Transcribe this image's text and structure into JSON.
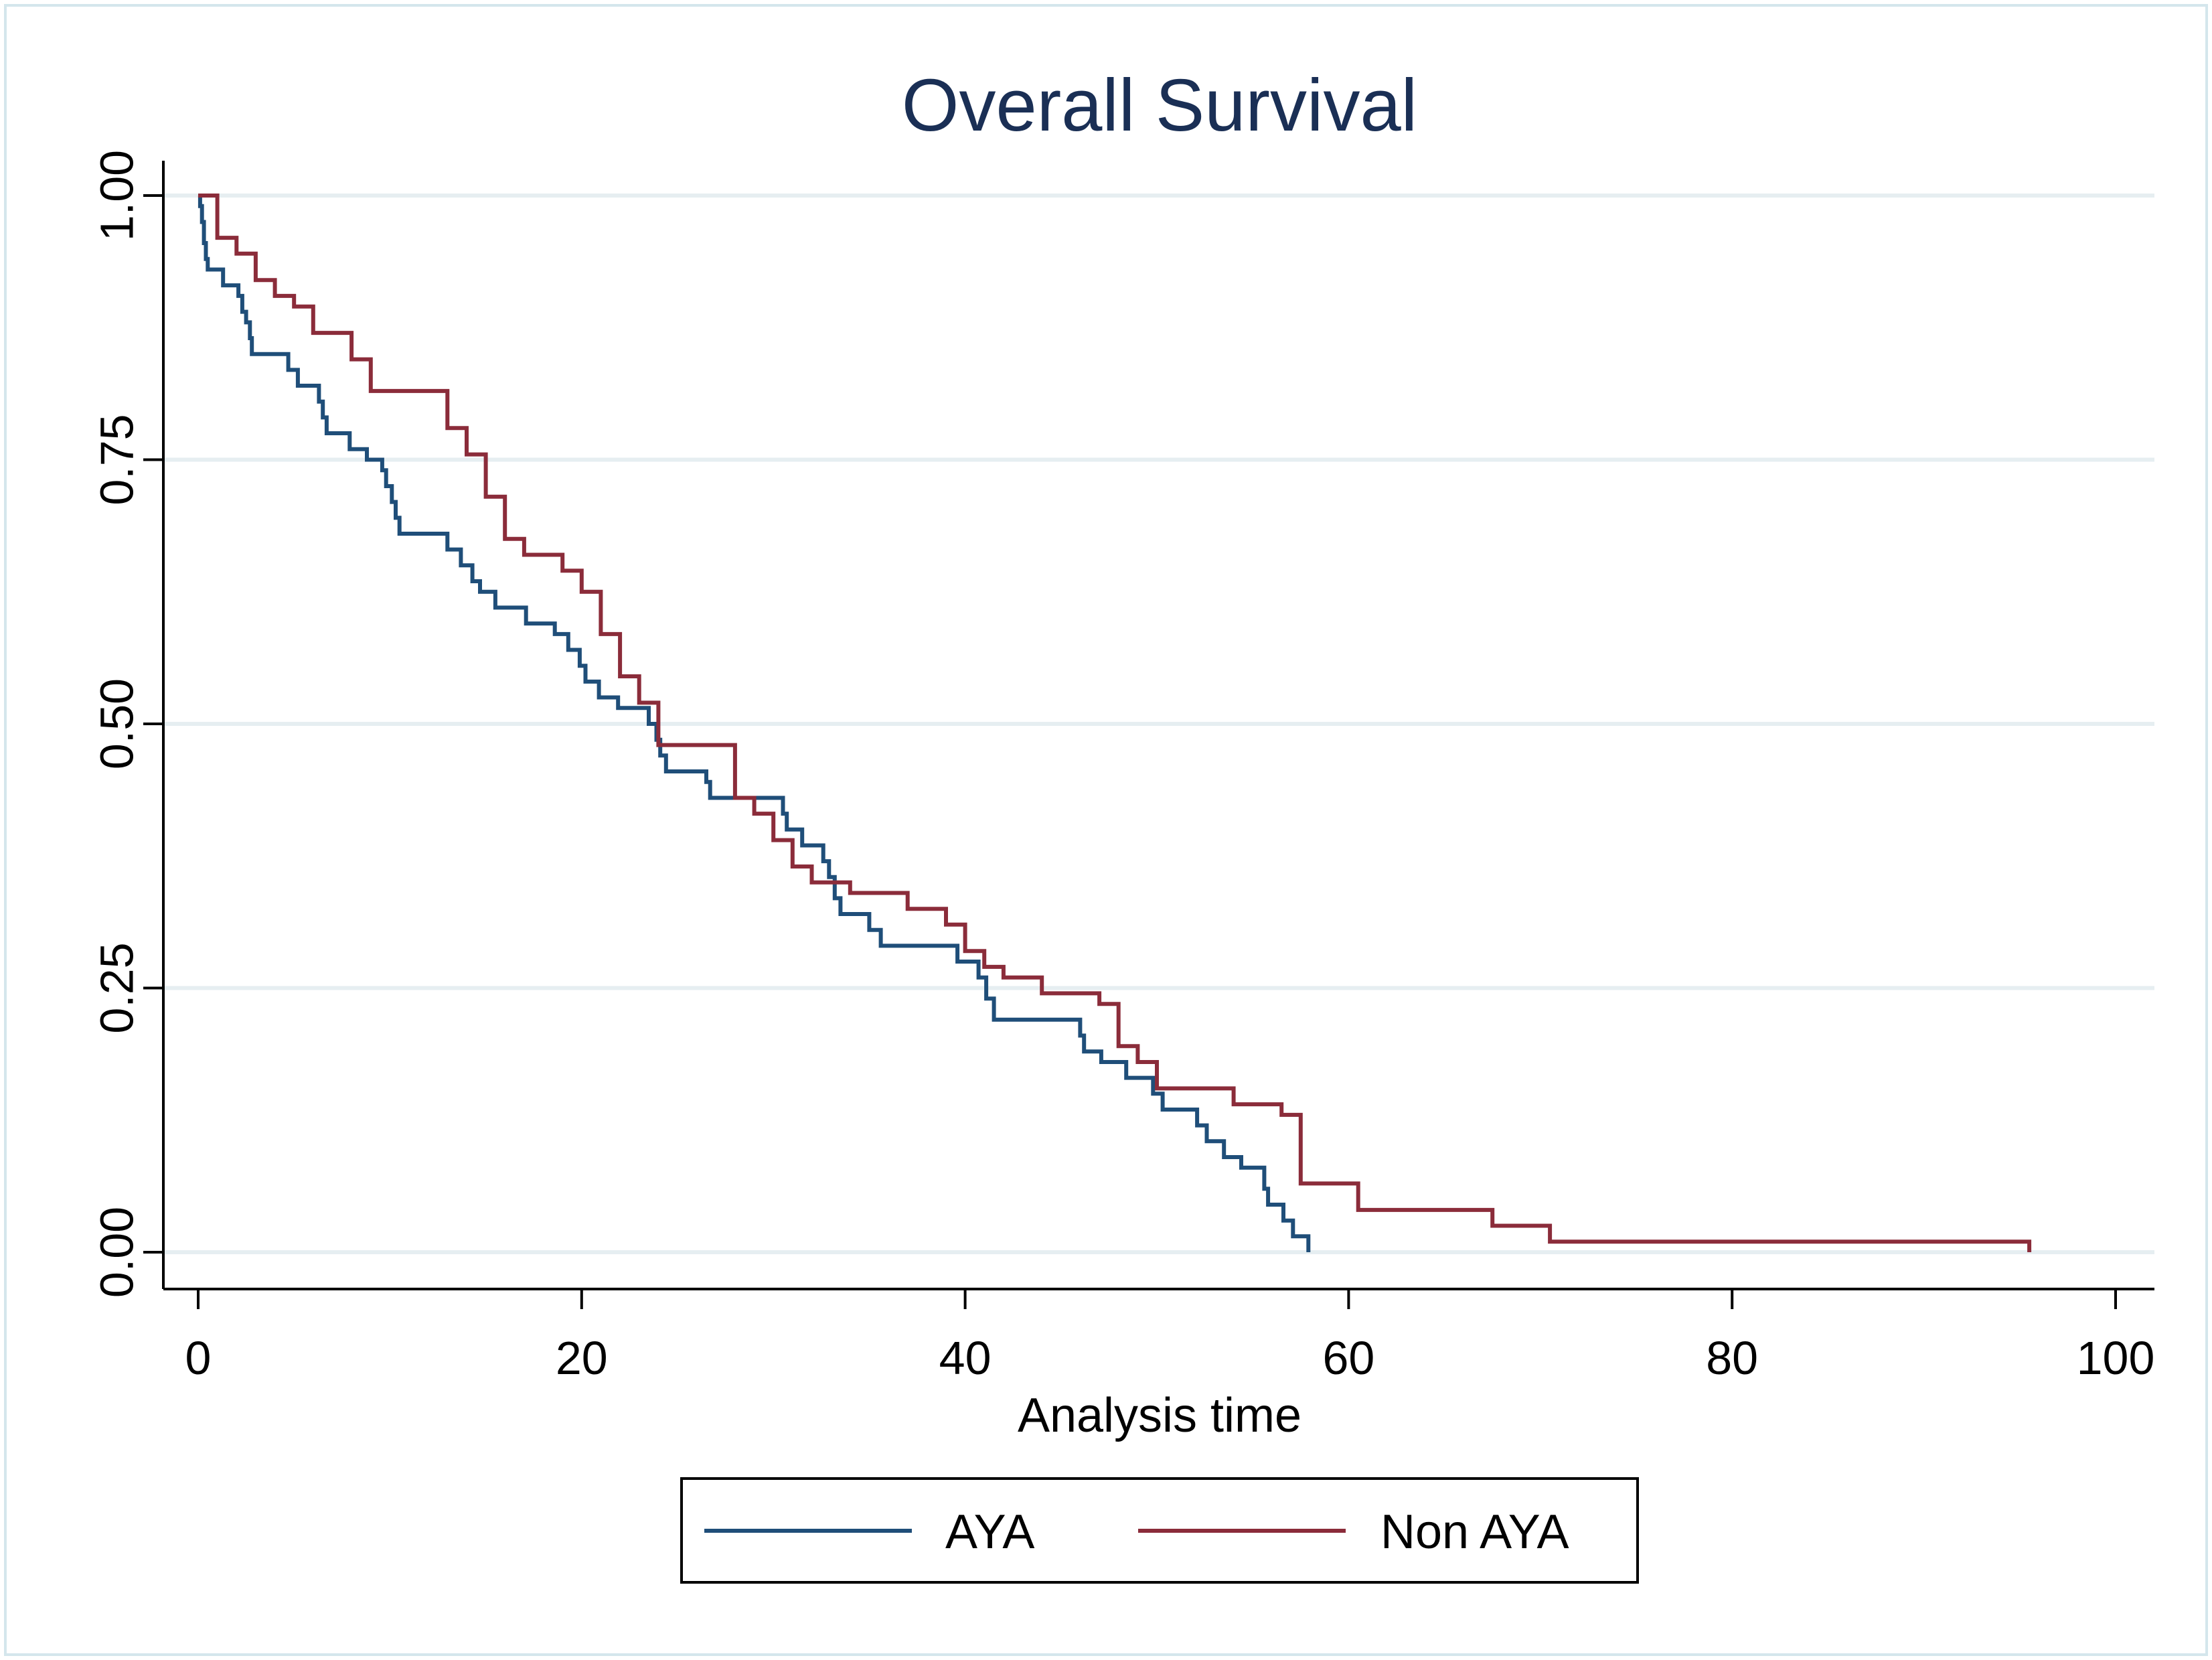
{
  "chart_data": {
    "type": "line",
    "title": "Overall Survival",
    "xlabel": "Analysis time",
    "ylabel": "",
    "xlim": [
      0,
      100
    ],
    "ylim": [
      0,
      1
    ],
    "x_ticks": [
      "0",
      "20",
      "40",
      "60",
      "80",
      "100"
    ],
    "x_tick_values": [
      0,
      20,
      40,
      60,
      80,
      100
    ],
    "y_ticks": [
      "0.00",
      "0.25",
      "0.50",
      "0.75",
      "1.00"
    ],
    "y_tick_values": [
      0,
      0.25,
      0.5,
      0.75,
      1.0
    ],
    "grid": true,
    "legend_position": "bottom",
    "series": [
      {
        "name": "AYA",
        "color": "#1f4e79",
        "points": [
          [
            0,
            1.0
          ],
          [
            0.1,
            0.99
          ],
          [
            0.2,
            0.975
          ],
          [
            0.3,
            0.955
          ],
          [
            0.4,
            0.94
          ],
          [
            0.5,
            0.93
          ],
          [
            1.3,
            0.915
          ],
          [
            2.1,
            0.905
          ],
          [
            2.3,
            0.89
          ],
          [
            2.5,
            0.88
          ],
          [
            2.7,
            0.865
          ],
          [
            2.8,
            0.85
          ],
          [
            4.7,
            0.835
          ],
          [
            5.2,
            0.82
          ],
          [
            6.3,
            0.805
          ],
          [
            6.5,
            0.79
          ],
          [
            6.7,
            0.775
          ],
          [
            7.9,
            0.76
          ],
          [
            8.8,
            0.75
          ],
          [
            9.6,
            0.74
          ],
          [
            9.8,
            0.725
          ],
          [
            10.1,
            0.71
          ],
          [
            10.3,
            0.695
          ],
          [
            10.5,
            0.68
          ],
          [
            13.0,
            0.665
          ],
          [
            13.7,
            0.65
          ],
          [
            14.3,
            0.635
          ],
          [
            14.7,
            0.625
          ],
          [
            15.5,
            0.61
          ],
          [
            17.1,
            0.595
          ],
          [
            18.6,
            0.585
          ],
          [
            19.3,
            0.57
          ],
          [
            19.9,
            0.555
          ],
          [
            20.2,
            0.54
          ],
          [
            20.9,
            0.525
          ],
          [
            21.9,
            0.515
          ],
          [
            23.5,
            0.5
          ],
          [
            23.9,
            0.485
          ],
          [
            24.1,
            0.47
          ],
          [
            24.4,
            0.455
          ],
          [
            26.5,
            0.445
          ],
          [
            26.7,
            0.43
          ],
          [
            30.5,
            0.415
          ],
          [
            30.7,
            0.4
          ],
          [
            31.5,
            0.385
          ],
          [
            32.6,
            0.37
          ],
          [
            32.9,
            0.355
          ],
          [
            33.2,
            0.335
          ],
          [
            33.5,
            0.32
          ],
          [
            35.0,
            0.305
          ],
          [
            35.6,
            0.29
          ],
          [
            39.6,
            0.275
          ],
          [
            40.7,
            0.26
          ],
          [
            41.1,
            0.24
          ],
          [
            41.5,
            0.22
          ],
          [
            46.0,
            0.205
          ],
          [
            46.2,
            0.19
          ],
          [
            47.1,
            0.18
          ],
          [
            48.4,
            0.165
          ],
          [
            49.8,
            0.15
          ],
          [
            50.3,
            0.135
          ],
          [
            52.1,
            0.12
          ],
          [
            52.6,
            0.105
          ],
          [
            53.5,
            0.09
          ],
          [
            54.4,
            0.08
          ],
          [
            55.6,
            0.06
          ],
          [
            55.8,
            0.045
          ],
          [
            56.6,
            0.03
          ],
          [
            57.1,
            0.015
          ],
          [
            57.9,
            0.0
          ]
        ]
      },
      {
        "name": "Non AYA",
        "color": "#8b2c3a",
        "points": [
          [
            0,
            1.0
          ],
          [
            1.0,
            0.96
          ],
          [
            2.0,
            0.945
          ],
          [
            3.0,
            0.92
          ],
          [
            4.0,
            0.905
          ],
          [
            5.0,
            0.895
          ],
          [
            6.0,
            0.87
          ],
          [
            8.0,
            0.845
          ],
          [
            9.0,
            0.815
          ],
          [
            13.0,
            0.78
          ],
          [
            14.0,
            0.755
          ],
          [
            15.0,
            0.715
          ],
          [
            16.0,
            0.675
          ],
          [
            17.0,
            0.66
          ],
          [
            19.0,
            0.645
          ],
          [
            20.0,
            0.625
          ],
          [
            21.0,
            0.585
          ],
          [
            22.0,
            0.545
          ],
          [
            23.0,
            0.52
          ],
          [
            24.0,
            0.48
          ],
          [
            28.0,
            0.43
          ],
          [
            29.0,
            0.415
          ],
          [
            30.0,
            0.39
          ],
          [
            31.0,
            0.365
          ],
          [
            32.0,
            0.35
          ],
          [
            34.0,
            0.34
          ],
          [
            37.0,
            0.325
          ],
          [
            39.0,
            0.31
          ],
          [
            40.0,
            0.285
          ],
          [
            41.0,
            0.27
          ],
          [
            42.0,
            0.26
          ],
          [
            44.0,
            0.245
          ],
          [
            47.0,
            0.235
          ],
          [
            48.0,
            0.195
          ],
          [
            49.0,
            0.18
          ],
          [
            50.0,
            0.155
          ],
          [
            54.0,
            0.14
          ],
          [
            56.5,
            0.13
          ],
          [
            57.5,
            0.065
          ],
          [
            60.5,
            0.04
          ],
          [
            67.5,
            0.025
          ],
          [
            70.5,
            0.01
          ],
          [
            95.5,
            0.0
          ]
        ]
      }
    ]
  }
}
